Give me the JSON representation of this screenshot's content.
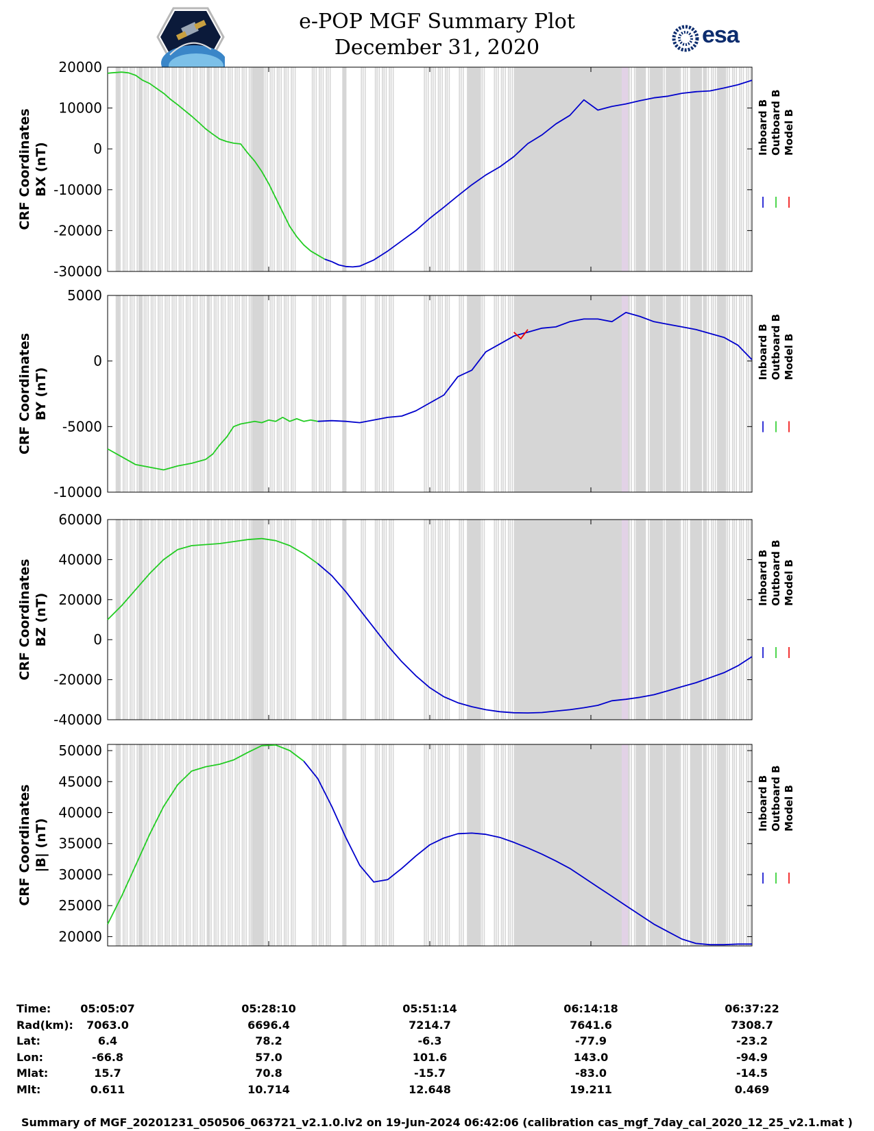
{
  "title": {
    "line1": "e-POP MGF Summary Plot",
    "line2": "December 31, 2020"
  },
  "logos": {
    "left": "e-POP CASSIOPE mission logo",
    "right": "esa"
  },
  "colors": {
    "inboard": "#0000cc",
    "outboard": "#22cc22",
    "model": "#ee0000",
    "shade": "#d6d6d6",
    "shade_pink": "#e2d2e6"
  },
  "chart_data": [
    {
      "type": "line",
      "ylabel_line1": "CRF Coordinates",
      "ylabel_line2": "BX (nT)",
      "ylim": [
        -30000,
        20000
      ],
      "yticks": [
        "20000",
        "10000",
        "0",
        "-10000",
        "-20000",
        "-30000"
      ],
      "yticks_values": [
        20000,
        10000,
        0,
        -10000,
        -20000,
        -30000
      ],
      "legend": [
        "Inboard B",
        "Outboard B",
        "Model B"
      ],
      "outboard_x": [
        0,
        0.5,
        2,
        3,
        4,
        5,
        6,
        7,
        8,
        9,
        10,
        11,
        12,
        13,
        14,
        15,
        16,
        17,
        18,
        19,
        20,
        21,
        22,
        23,
        24,
        25,
        26,
        27,
        28,
        29,
        30,
        31
      ],
      "outboard_y": [
        18500,
        18600,
        18800,
        18600,
        18000,
        16800,
        16000,
        14800,
        13600,
        12100,
        10800,
        9400,
        8000,
        6500,
        4900,
        3600,
        2400,
        1800,
        1400,
        1200,
        -1000,
        -3000,
        -5500,
        -8500,
        -12000,
        -15500,
        -19000,
        -21500,
        -23500,
        -25000,
        -26000,
        -27000
      ],
      "inboard_x": [
        31,
        32,
        33,
        34,
        35,
        36,
        38,
        40,
        42,
        44,
        46,
        48,
        50,
        52,
        54,
        56,
        58,
        60,
        62,
        64,
        66,
        68,
        70,
        72,
        74,
        76,
        78,
        80,
        82,
        84,
        86,
        88,
        90,
        92
      ],
      "inboard_y": [
        -27000,
        -27600,
        -28400,
        -28800,
        -28900,
        -28700,
        -27200,
        -25000,
        -22500,
        -20000,
        -17000,
        -14300,
        -11500,
        -8800,
        -6400,
        -4400,
        -1900,
        1300,
        3400,
        6100,
        8200,
        12000,
        9500,
        10400,
        11000,
        11800,
        12500,
        12900,
        13600,
        14000,
        14200,
        14900,
        15700,
        16800
      ]
    },
    {
      "type": "line",
      "ylabel_line1": "CRF Coordinates",
      "ylabel_line2": "BY (nT)",
      "ylim": [
        -10000,
        5000
      ],
      "yticks": [
        "5000",
        "0",
        "-5000",
        "-10000"
      ],
      "yticks_values": [
        5000,
        0,
        -5000,
        -10000
      ],
      "legend": [
        "Inboard B",
        "Outboard B",
        "Model B"
      ],
      "outboard_x": [
        0,
        2,
        4,
        6,
        8,
        10,
        12,
        14,
        15,
        16,
        17,
        18,
        19,
        20,
        21,
        22,
        23,
        24,
        25,
        26,
        27,
        28,
        29,
        30
      ],
      "outboard_y": [
        -6700,
        -7300,
        -7900,
        -8100,
        -8300,
        -8000,
        -7800,
        -7500,
        -7100,
        -6400,
        -5800,
        -5000,
        -4800,
        -4700,
        -4600,
        -4700,
        -4500,
        -4600,
        -4300,
        -4600,
        -4400,
        -4600,
        -4500,
        -4600
      ],
      "inboard_x": [
        30,
        32,
        34,
        36,
        38,
        40,
        42,
        44,
        46,
        48,
        50,
        52,
        54,
        56,
        58,
        60,
        62,
        64,
        66,
        68,
        70,
        72,
        74,
        76,
        78,
        80,
        82,
        84,
        86,
        88,
        90,
        92
      ],
      "inboard_y": [
        -4600,
        -4550,
        -4600,
        -4700,
        -4500,
        -4300,
        -4200,
        -3800,
        -3200,
        -2600,
        -1200,
        -700,
        700,
        1300,
        1900,
        2200,
        2500,
        2600,
        3000,
        3200,
        3200,
        3000,
        3700,
        3400,
        3000,
        2800,
        2600,
        2400,
        2100,
        1800,
        1200,
        100
      ],
      "model_x": [
        58,
        59,
        60
      ],
      "model_y": [
        2200,
        1700,
        2400
      ]
    },
    {
      "type": "line",
      "ylabel_line1": "CRF Coordinates",
      "ylabel_line2": "BZ (nT)",
      "ylim": [
        -40000,
        60000
      ],
      "yticks": [
        "60000",
        "40000",
        "20000",
        "0",
        "-20000",
        "-40000"
      ],
      "yticks_values": [
        60000,
        40000,
        20000,
        0,
        -20000,
        -40000
      ],
      "legend": [
        "Inboard B",
        "Outboard B",
        "Model B"
      ],
      "outboard_x": [
        0,
        2,
        4,
        6,
        8,
        10,
        12,
        14,
        16,
        18,
        20,
        22,
        24,
        26,
        28,
        30
      ],
      "outboard_y": [
        10000,
        17000,
        25000,
        33000,
        40000,
        45000,
        47000,
        47500,
        48000,
        49000,
        50000,
        50500,
        49500,
        47000,
        43000,
        38000
      ],
      "inboard_x": [
        30,
        32,
        34,
        36,
        38,
        40,
        42,
        44,
        46,
        48,
        50,
        52,
        54,
        56,
        58,
        60,
        62,
        64,
        66,
        68,
        70,
        72,
        74,
        76,
        78,
        80,
        82,
        84,
        86,
        88,
        90,
        92
      ],
      "inboard_y": [
        38000,
        32000,
        24000,
        15000,
        6000,
        -3000,
        -11000,
        -18000,
        -24000,
        -28500,
        -31500,
        -33500,
        -35000,
        -36000,
        -36500,
        -36600,
        -36400,
        -35700,
        -35000,
        -34000,
        -32800,
        -30500,
        -29800,
        -28800,
        -27500,
        -25500,
        -23500,
        -21500,
        -19000,
        -16500,
        -13000,
        -8500
      ]
    },
    {
      "type": "line",
      "ylabel_line1": "CRF Coordinates",
      "ylabel_line2": "|B| (nT)",
      "ylim": [
        18500,
        51000
      ],
      "yticks": [
        "50000",
        "45000",
        "40000",
        "35000",
        "30000",
        "25000",
        "20000"
      ],
      "yticks_values": [
        50000,
        45000,
        40000,
        35000,
        30000,
        25000,
        20000
      ],
      "legend": [
        "Inboard B",
        "Outboard B",
        "Model B"
      ],
      "outboard_x": [
        0,
        2,
        4,
        6,
        8,
        10,
        12,
        14,
        16,
        18,
        20,
        22,
        24,
        26,
        28
      ],
      "outboard_y": [
        22000,
        26500,
        31500,
        36500,
        41000,
        44500,
        46700,
        47400,
        47800,
        48500,
        49700,
        50800,
        50900,
        50000,
        48300
      ],
      "inboard_x": [
        28,
        30,
        32,
        34,
        36,
        38,
        40,
        42,
        44,
        46,
        48,
        50,
        52,
        54,
        56,
        58,
        60,
        62,
        64,
        66,
        68,
        70,
        72,
        74,
        76,
        78,
        80,
        82,
        84,
        86,
        88,
        90,
        92
      ],
      "inboard_y": [
        48300,
        45500,
        41000,
        36000,
        31500,
        28800,
        29200,
        31000,
        33000,
        34800,
        35900,
        36600,
        36700,
        36500,
        36000,
        35200,
        34300,
        33300,
        32200,
        31000,
        29500,
        28000,
        26500,
        25000,
        23500,
        22000,
        20800,
        19600,
        18900,
        18700,
        18700,
        18800,
        18800
      ]
    }
  ],
  "time_axis": {
    "xlim": [
      0,
      92
    ],
    "major_ticks": [
      0,
      23,
      46,
      69,
      92
    ]
  },
  "info_table": {
    "labels": [
      "Time:",
      "Rad(km):",
      "Lat:",
      "Lon:",
      "Mlat:",
      "Mlt:"
    ],
    "columns": [
      [
        "05:05:07",
        "7063.0",
        "6.4",
        "-66.8",
        "15.7",
        "0.611"
      ],
      [
        "05:28:10",
        "6696.4",
        "78.2",
        "57.0",
        "70.8",
        "10.714"
      ],
      [
        "05:51:14",
        "7214.7",
        "-6.3",
        "101.6",
        "-15.7",
        "12.648"
      ],
      [
        "06:14:18",
        "7641.6",
        "-77.9",
        "143.0",
        "-83.0",
        "19.211"
      ],
      [
        "06:37:22",
        "7308.7",
        "-23.2",
        "-94.9",
        "-14.5",
        "0.469"
      ]
    ]
  },
  "footer": "Summary of MGF_20201231_050506_063721_v2.1.0.lv2 on 19-Jun-2024 06:42:06 (calibration cas_mgf_7day_cal_2020_12_25_v2.1.mat )"
}
